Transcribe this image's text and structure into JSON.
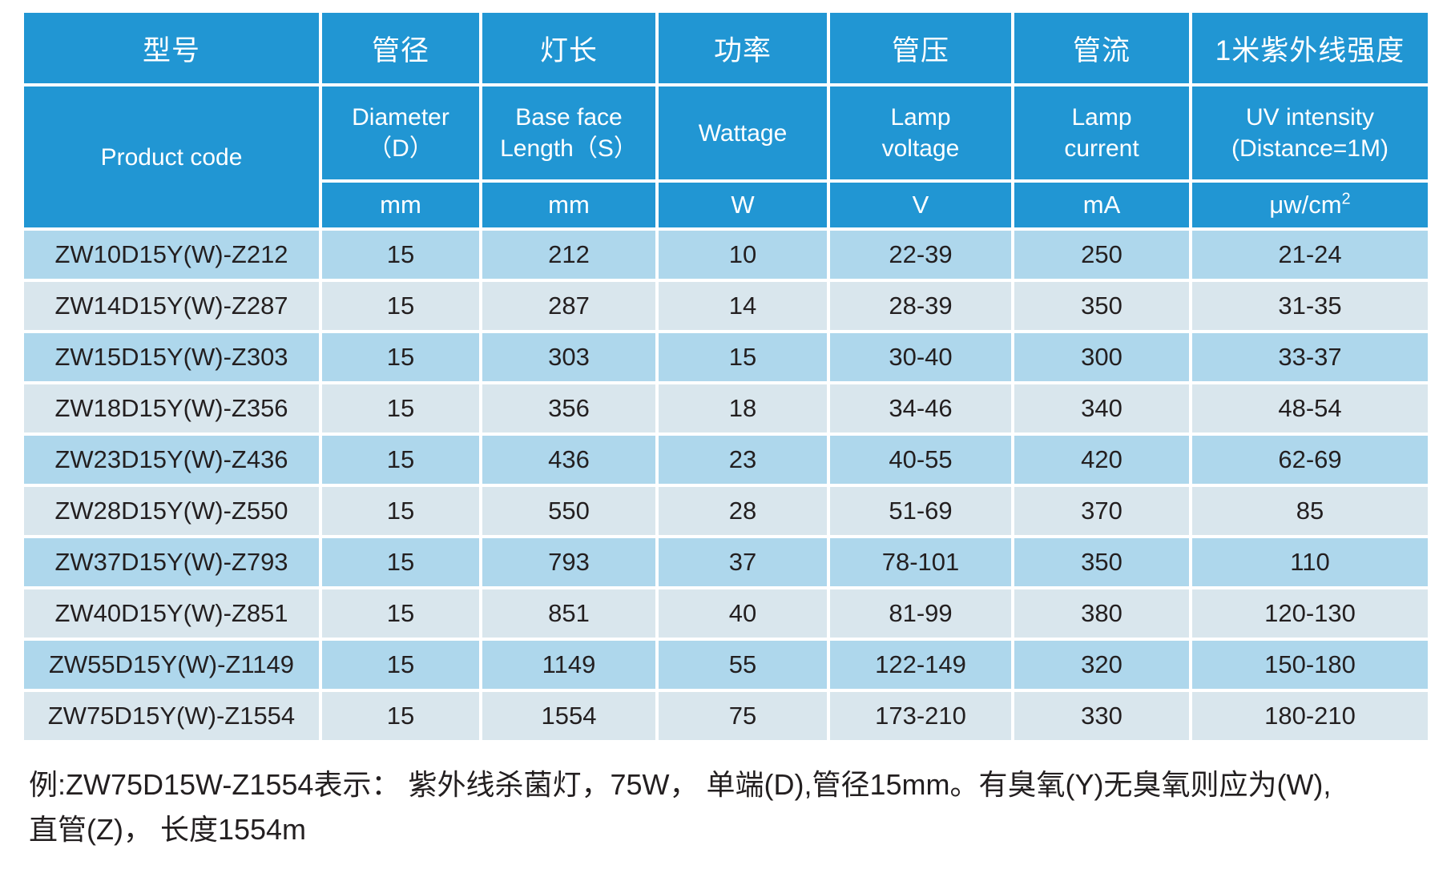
{
  "colors": {
    "header_bg": "#2196d3",
    "header_text": "#ffffff",
    "row_odd_bg": "#aed7ec",
    "row_even_bg": "#d9e6ed",
    "cell_text": "#231f20",
    "grid_gap": "#ffffff"
  },
  "table": {
    "header_cn": [
      "型号",
      "管径",
      "灯长",
      "功率",
      "管压",
      "管流",
      "1米紫外线强度"
    ],
    "header_en": [
      [
        "Product  code"
      ],
      [
        "Diameter",
        "（D）"
      ],
      [
        "Base face",
        "Length（S）"
      ],
      [
        "Wattage"
      ],
      [
        "Lamp",
        "voltage"
      ],
      [
        "Lamp",
        "current"
      ],
      [
        "UV intensity",
        "(Distance=1M)"
      ]
    ],
    "units": [
      "mm",
      "mm",
      "W",
      "V",
      "mA",
      "μw/cm"
    ],
    "uv_unit_sup": "2",
    "rows": [
      [
        "ZW10D15Y(W)-Z212",
        "15",
        "212",
        "10",
        "22-39",
        "250",
        "21-24"
      ],
      [
        "ZW14D15Y(W)-Z287",
        "15",
        "287",
        "14",
        "28-39",
        "350",
        "31-35"
      ],
      [
        "ZW15D15Y(W)-Z303",
        "15",
        "303",
        "15",
        "30-40",
        "300",
        "33-37"
      ],
      [
        "ZW18D15Y(W)-Z356",
        "15",
        "356",
        "18",
        "34-46",
        "340",
        "48-54"
      ],
      [
        "ZW23D15Y(W)-Z436",
        "15",
        "436",
        "23",
        "40-55",
        "420",
        "62-69"
      ],
      [
        "ZW28D15Y(W)-Z550",
        "15",
        "550",
        "28",
        "51-69",
        "370",
        "85"
      ],
      [
        "ZW37D15Y(W)-Z793",
        "15",
        "793",
        "37",
        "78-101",
        "350",
        "110"
      ],
      [
        "ZW40D15Y(W)-Z851",
        "15",
        "851",
        "40",
        "81-99",
        "380",
        "120-130"
      ],
      [
        "ZW55D15Y(W)-Z1149",
        "15",
        "1149",
        "55",
        "122-149",
        "320",
        "150-180"
      ],
      [
        "ZW75D15Y(W)-Z1554",
        "15",
        "1554",
        "75",
        "173-210",
        "330",
        "180-210"
      ]
    ],
    "column_names": [
      "product-code",
      "diameter",
      "length",
      "wattage",
      "voltage",
      "current",
      "uv-intensity"
    ]
  },
  "footer": {
    "line1": "例:ZW75D15W-Z1554表示： 紫外线杀菌灯，75W， 单端(D),管径15mm。有臭氧(Y)无臭氧则应为(W),",
    "line2": "直管(Z)， 长度1554m"
  }
}
